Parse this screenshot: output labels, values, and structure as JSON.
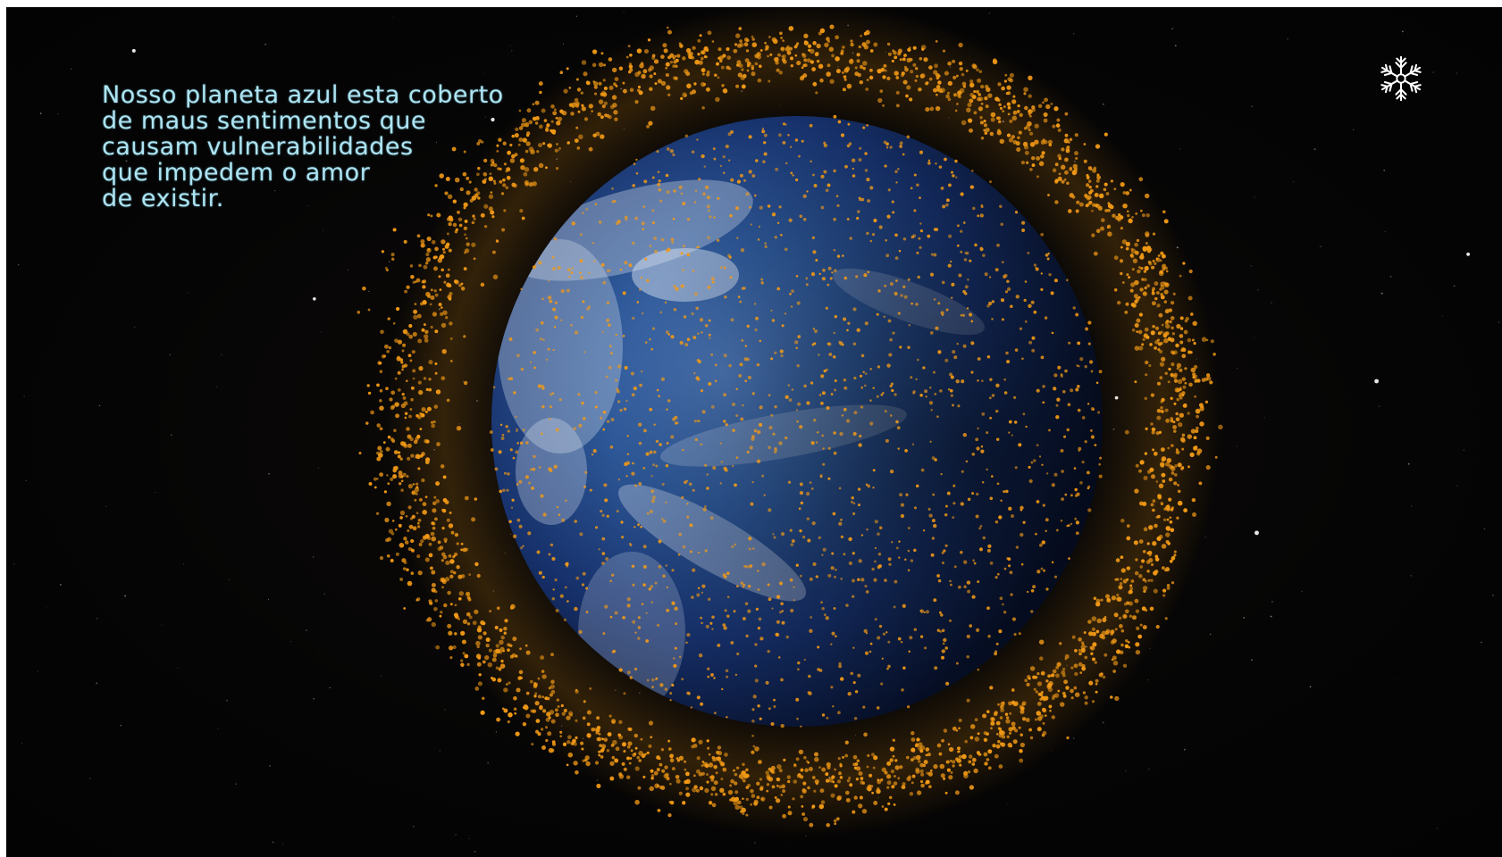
{
  "scene": {
    "description_icon": "earth-globe-with-orange-debris-particles",
    "colors": {
      "space": "#050404",
      "debris": "#f29a16",
      "caption": "#aee4f2",
      "logo": "#ffffff"
    }
  },
  "caption": {
    "lines": [
      "Nosso planeta azul esta coberto",
      "de maus sentimentos que",
      "causam vulnerabilidades",
      "que impedem o amor",
      "de existir."
    ]
  },
  "logo": {
    "icon": "snowflake-logo-icon"
  }
}
